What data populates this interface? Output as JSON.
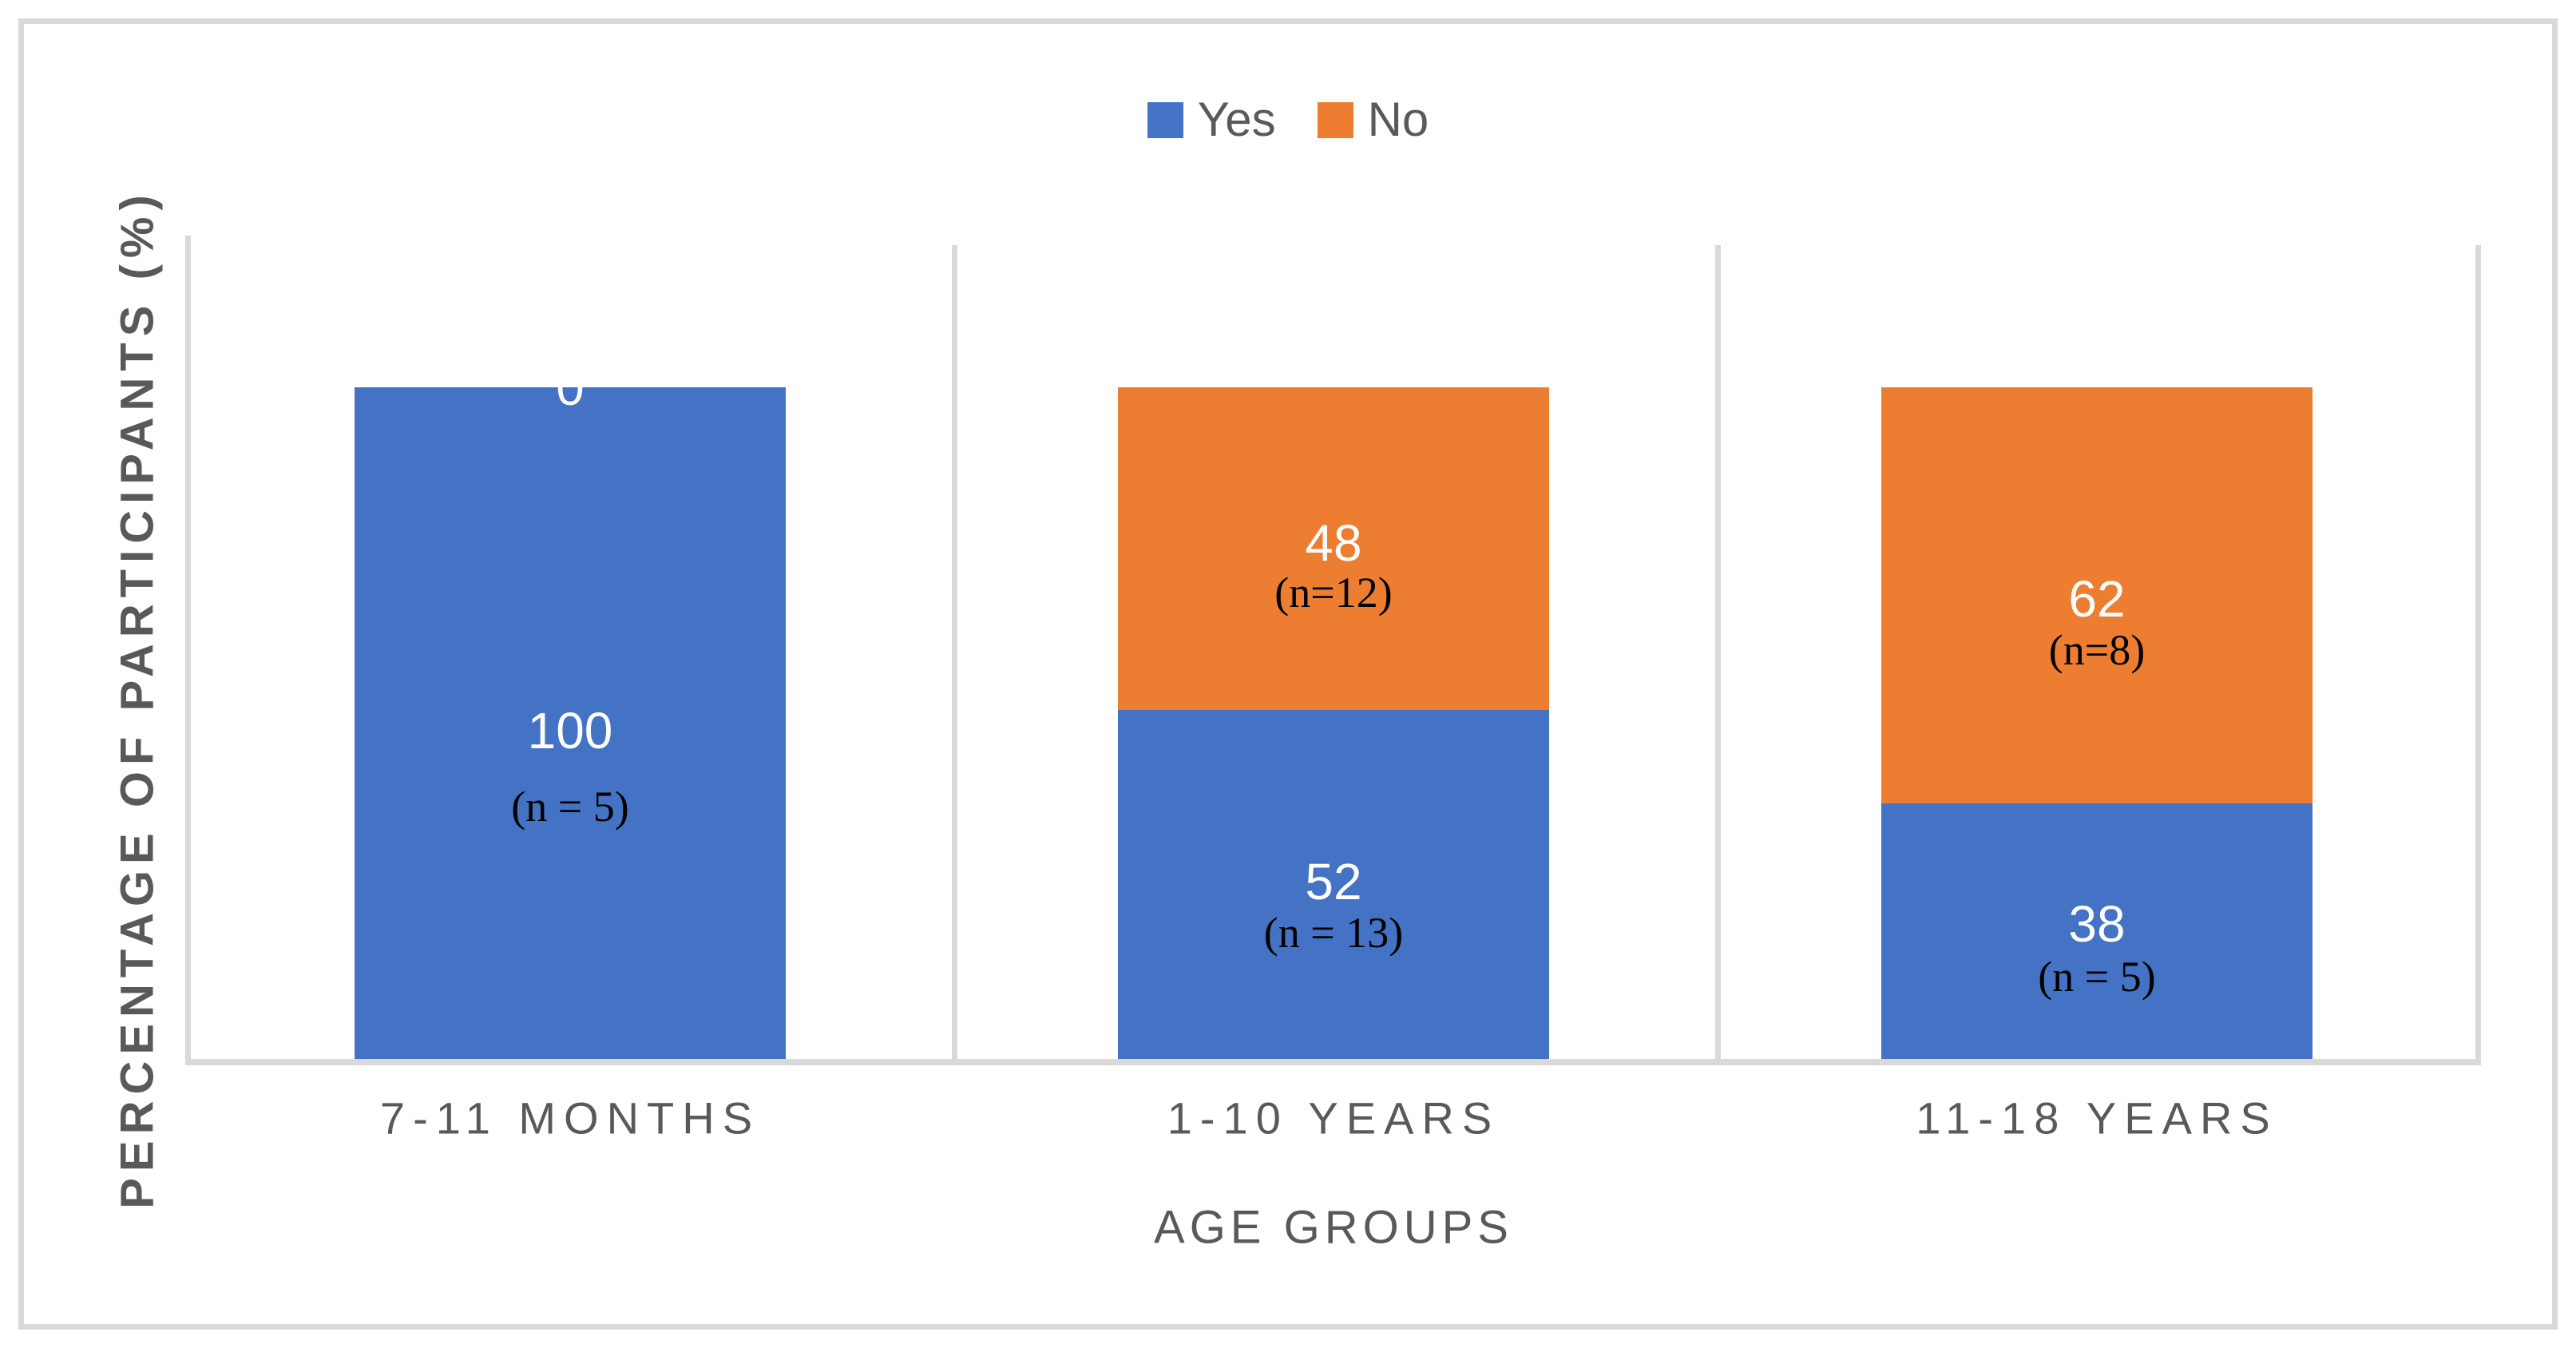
{
  "figure": {
    "background": "#ffffff",
    "border_color": "#d9d9d9",
    "axis_line_color": "#d9d9d9",
    "text_color": "#595959"
  },
  "legend": {
    "position": "top-center",
    "items": [
      {
        "label": "Yes",
        "color": "#4472c4"
      },
      {
        "label": "No",
        "color": "#ed7d31"
      }
    ]
  },
  "axes": {
    "y_title": "PERCENTAGE OF PARTICIPANTS (%)",
    "x_title": "AGE GROUPS"
  },
  "chart_data": {
    "type": "bar",
    "subtype": "stacked-100",
    "title": "",
    "xlabel": "AGE GROUPS",
    "ylabel": "PERCENTAGE OF PARTICIPANTS (%)",
    "ylim": [
      0,
      120
    ],
    "grid": false,
    "legend_position": "top",
    "categories": [
      "7-11 MONTHS",
      "1-10 YEARS",
      "11-18 YEARS"
    ],
    "series": [
      {
        "name": "Yes",
        "color": "#4472c4",
        "values": [
          100,
          52,
          38
        ],
        "n_labels": [
          "(n = 5)",
          "(n = 13)",
          "(n = 5)"
        ],
        "value_label_dy": [
          9,
          -3,
          -9
        ],
        "n_label_dy": [
          104,
          61,
          57
        ]
      },
      {
        "name": "No",
        "color": "#ed7d31",
        "values": [
          0,
          48,
          62
        ],
        "n_labels": [
          null,
          "(n=12)",
          "(n=8)"
        ],
        "value_label_dy": [
          0,
          -7,
          4
        ],
        "n_label_dy": [
          null,
          55,
          68
        ]
      }
    ]
  }
}
